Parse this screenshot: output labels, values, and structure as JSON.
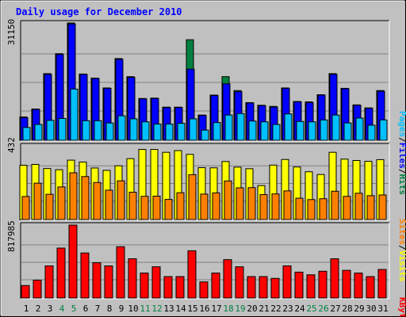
{
  "title": "Daily usage for December 2010",
  "colors": {
    "frame_bg": "#c0c0c0",
    "panel_bg": "#c0c0c0",
    "title": "#0000ff",
    "hits": "#008040",
    "files": "#0000ff",
    "pages": "#00c0ff",
    "visits": "#ffff00",
    "sites": "#ff8000",
    "kbytes": "#ff0000",
    "gridline": "#808080",
    "weekend_day": "#008040",
    "weekday": "#000000"
  },
  "legend": {
    "top": {
      "pages": "Pages",
      "sep1": "/",
      "files": "Files",
      "sep2": "/",
      "hits": "Hits"
    },
    "middle": {
      "sites": "Sites",
      "sep": "/",
      "visits": "Visits"
    },
    "bottom": {
      "kbytes": "KBytes"
    }
  },
  "chart_data": [
    {
      "type": "bar",
      "panel": "hits-files-pages",
      "y_max_label": "31150",
      "ylim": [
        0,
        31150
      ],
      "x": [
        1,
        2,
        3,
        4,
        5,
        6,
        7,
        8,
        9,
        10,
        11,
        12,
        13,
        14,
        15,
        16,
        17,
        18,
        19,
        20,
        21,
        22,
        23,
        24,
        25,
        26,
        27,
        28,
        29,
        30,
        31
      ],
      "series": [
        {
          "name": "Hits",
          "values": [
            6200,
            8300,
            17700,
            23000,
            31150,
            17600,
            16500,
            13900,
            21700,
            16900,
            11100,
            11200,
            8800,
            8800,
            26700,
            6700,
            12000,
            16900,
            13200,
            10000,
            9300,
            9000,
            13900,
            10300,
            10200,
            12100,
            17700,
            13800,
            9400,
            8600,
            13200
          ]
        },
        {
          "name": "Files",
          "values": [
            6000,
            8200,
            17500,
            22800,
            30900,
            17500,
            16400,
            13800,
            21500,
            16700,
            11000,
            11100,
            8700,
            8700,
            18900,
            6600,
            11900,
            15000,
            12900,
            9900,
            9200,
            8800,
            13800,
            10200,
            10000,
            12000,
            17500,
            13700,
            9300,
            8500,
            13000
          ]
        },
        {
          "name": "Pages",
          "values": [
            3400,
            4200,
            5300,
            5800,
            13600,
            5200,
            5200,
            4600,
            6500,
            5700,
            4900,
            4300,
            4300,
            4500,
            5700,
            2700,
            4700,
            6700,
            7100,
            5100,
            4900,
            4200,
            7000,
            5000,
            4900,
            5400,
            6700,
            4600,
            5900,
            4000,
            5400
          ]
        }
      ]
    },
    {
      "type": "bar",
      "panel": "visits-sites",
      "y_max_label": "432",
      "ylim": [
        0,
        432
      ],
      "x": [
        1,
        2,
        3,
        4,
        5,
        6,
        7,
        8,
        9,
        10,
        11,
        12,
        13,
        14,
        15,
        16,
        17,
        18,
        19,
        20,
        21,
        22,
        23,
        24,
        25,
        26,
        27,
        28,
        29,
        30,
        31
      ],
      "series": [
        {
          "name": "Visits",
          "values": [
            318,
            323,
            299,
            292,
            348,
            337,
            302,
            288,
            315,
            357,
            411,
            411,
            394,
            404,
            382,
            304,
            303,
            340,
            307,
            298,
            199,
            319,
            352,
            308,
            280,
            264,
            394,
            354,
            346,
            341,
            351
          ]
        },
        {
          "name": "Sites",
          "values": [
            135,
            213,
            148,
            191,
            274,
            252,
            217,
            172,
            227,
            160,
            136,
            137,
            118,
            157,
            263,
            149,
            156,
            226,
            186,
            187,
            146,
            150,
            168,
            125,
            117,
            122,
            166,
            136,
            154,
            140,
            144
          ]
        }
      ]
    },
    {
      "type": "bar",
      "panel": "kbytes",
      "y_max_label": "817985",
      "ylim": [
        0,
        817985
      ],
      "x": [
        1,
        2,
        3,
        4,
        5,
        6,
        7,
        8,
        9,
        10,
        11,
        12,
        13,
        14,
        15,
        16,
        17,
        18,
        19,
        20,
        21,
        22,
        23,
        24,
        25,
        26,
        27,
        28,
        29,
        30,
        31
      ],
      "series": [
        {
          "name": "KBytes",
          "values": [
            140000,
            200000,
            360000,
            560000,
            817985,
            505000,
            395000,
            360000,
            575000,
            440000,
            280000,
            350000,
            240000,
            240000,
            530000,
            180000,
            280000,
            430000,
            350000,
            240000,
            240000,
            220000,
            360000,
            290000,
            260000,
            300000,
            440000,
            310000,
            280000,
            240000,
            320000
          ]
        }
      ]
    }
  ],
  "days": [
    {
      "label": "1",
      "weekend": false
    },
    {
      "label": "2",
      "weekend": false
    },
    {
      "label": "3",
      "weekend": false
    },
    {
      "label": "4",
      "weekend": true
    },
    {
      "label": "5",
      "weekend": true
    },
    {
      "label": "6",
      "weekend": false
    },
    {
      "label": "7",
      "weekend": false
    },
    {
      "label": "8",
      "weekend": false
    },
    {
      "label": "9",
      "weekend": false
    },
    {
      "label": "10",
      "weekend": false
    },
    {
      "label": "11",
      "weekend": true
    },
    {
      "label": "12",
      "weekend": true
    },
    {
      "label": "13",
      "weekend": false
    },
    {
      "label": "14",
      "weekend": false
    },
    {
      "label": "15",
      "weekend": false
    },
    {
      "label": "16",
      "weekend": false
    },
    {
      "label": "17",
      "weekend": false
    },
    {
      "label": "18",
      "weekend": true
    },
    {
      "label": "19",
      "weekend": true
    },
    {
      "label": "20",
      "weekend": false
    },
    {
      "label": "21",
      "weekend": false
    },
    {
      "label": "22",
      "weekend": false
    },
    {
      "label": "23",
      "weekend": false
    },
    {
      "label": "24",
      "weekend": false
    },
    {
      "label": "25",
      "weekend": true
    },
    {
      "label": "26",
      "weekend": true
    },
    {
      "label": "27",
      "weekend": false
    },
    {
      "label": "28",
      "weekend": false
    },
    {
      "label": "29",
      "weekend": false
    },
    {
      "label": "30",
      "weekend": false
    },
    {
      "label": "31",
      "weekend": false
    }
  ]
}
